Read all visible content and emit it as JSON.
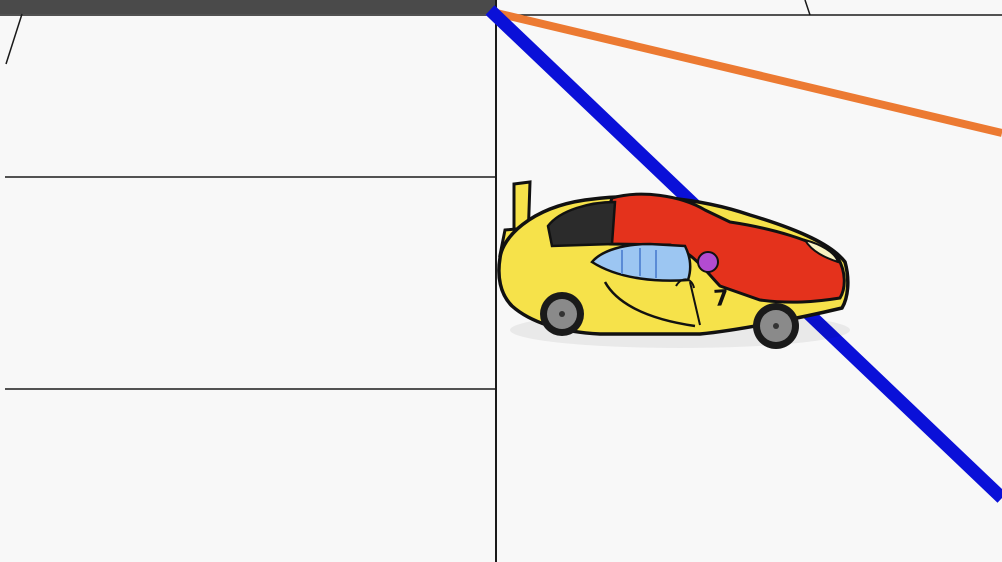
{
  "scene": {
    "background_color": "#f8f8f8",
    "panel_line_color": "#1a1a1a",
    "top_bar_color": "#4a4a4a",
    "blue_line_color": "#0a10d8",
    "orange_line_color": "#ec7a32"
  },
  "car": {
    "icon": "race-car-icon",
    "body_color": "#f6e24a",
    "roof_color": "#e4321c",
    "window_color": "#9cc6f2",
    "outline_color": "#111111",
    "wheel_color": "#8a8a8a",
    "livery_number": "7"
  }
}
